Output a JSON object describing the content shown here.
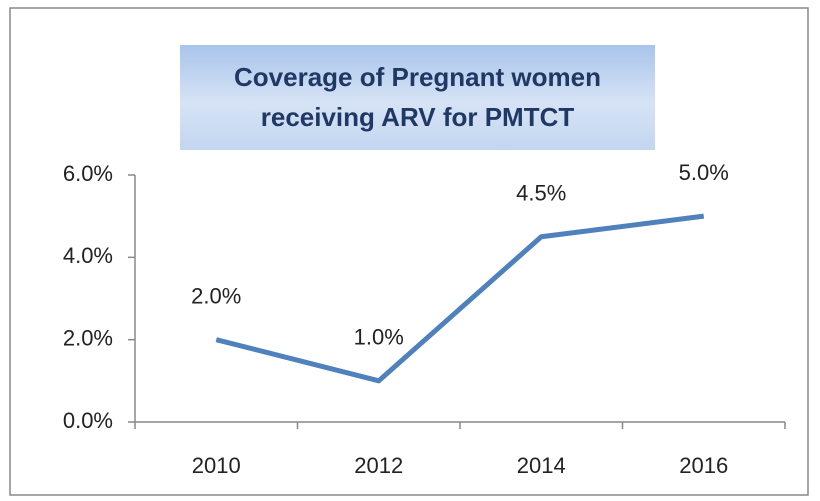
{
  "chart_data": {
    "type": "line",
    "title": "Coverage of Pregnant women receiving ARV for PMTCT",
    "categories": [
      "2010",
      "2012",
      "2014",
      "2016"
    ],
    "values": [
      2,
      1,
      4.5,
      5
    ],
    "value_labels": [
      "2.0%",
      "1.0%",
      "4.5%",
      "5.0%"
    ],
    "color": "#4f81bd",
    "ylim": [
      0,
      6
    ],
    "yticks": [
      {
        "value": 0,
        "label": "0.0%"
      },
      {
        "value": 2,
        "label": "2.0%"
      },
      {
        "value": 4,
        "label": "4.0%"
      },
      {
        "value": 6,
        "label": "6.0%"
      }
    ],
    "grid": false
  }
}
